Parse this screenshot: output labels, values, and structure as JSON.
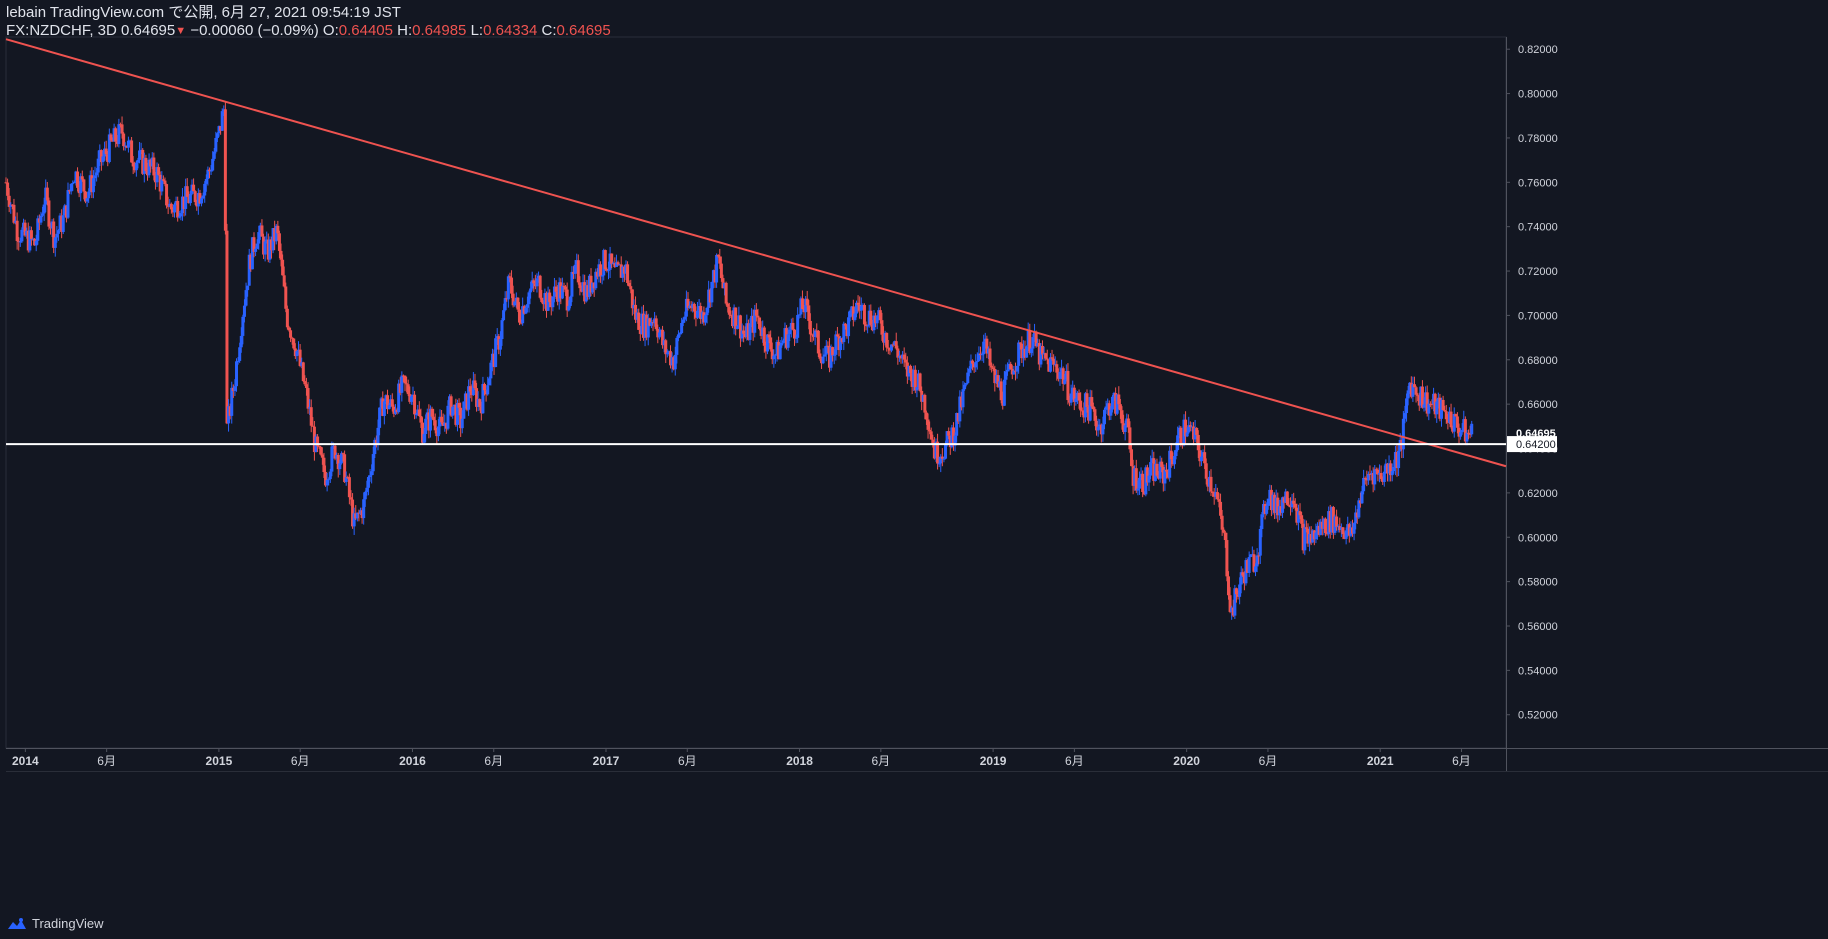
{
  "header": {
    "published_line": "lebain TradingView.com で公開, 6月 27, 2021 09:54:19 JST",
    "symbol": "FX:NZDCHF, 3D",
    "last": "0.64695",
    "change": "−0.00060 (−0.09%)",
    "o_label": "O:",
    "o_value": "0.64405",
    "h_label": "H:",
    "h_value": "0.64985",
    "l_label": "L:",
    "l_value": "0.64334",
    "c_label": "C:",
    "c_value": "0.64695"
  },
  "footer": {
    "brand": "TradingView",
    "logo_icon": "tradingview-logo-icon"
  },
  "colors": {
    "background": "#131722",
    "up": "#2962ff",
    "down": "#ef5350",
    "trendline": "#ef5350",
    "hline": "#ffffff",
    "axis_text": "#d1d4dc"
  },
  "chart_data": {
    "type": "candlestick",
    "symbol": "FX:NZDCHF",
    "timeframe": "3D",
    "ylim": [
      0.505,
      0.8255
    ],
    "xlim": [
      2013.9,
      2021.65
    ],
    "y_ticks": [
      "0.52000",
      "0.54000",
      "0.56000",
      "0.58000",
      "0.60000",
      "0.62000",
      "0.64000",
      "0.66000",
      "0.68000",
      "0.70000",
      "0.72000",
      "0.74000",
      "0.76000",
      "0.78000",
      "0.80000",
      "0.82000"
    ],
    "x_ticks": [
      {
        "t": 2014.0,
        "label": "2014"
      },
      {
        "t": 2014.42,
        "label": "6月"
      },
      {
        "t": 2015.0,
        "label": "2015"
      },
      {
        "t": 2015.42,
        "label": "6月"
      },
      {
        "t": 2016.0,
        "label": "2016"
      },
      {
        "t": 2016.42,
        "label": "6月"
      },
      {
        "t": 2017.0,
        "label": "2017"
      },
      {
        "t": 2017.42,
        "label": "6月"
      },
      {
        "t": 2018.0,
        "label": "2018"
      },
      {
        "t": 2018.42,
        "label": "6月"
      },
      {
        "t": 2019.0,
        "label": "2019"
      },
      {
        "t": 2019.42,
        "label": "6月"
      },
      {
        "t": 2020.0,
        "label": "2020"
      },
      {
        "t": 2020.42,
        "label": "6月"
      },
      {
        "t": 2021.0,
        "label": "2021"
      },
      {
        "t": 2021.42,
        "label": "6月"
      }
    ],
    "price_path": [
      [
        2013.9,
        0.76
      ],
      [
        2013.96,
        0.738
      ],
      [
        2014.05,
        0.732
      ],
      [
        2014.1,
        0.754
      ],
      [
        2014.15,
        0.735
      ],
      [
        2014.2,
        0.744
      ],
      [
        2014.25,
        0.765
      ],
      [
        2014.32,
        0.755
      ],
      [
        2014.38,
        0.768
      ],
      [
        2014.45,
        0.778
      ],
      [
        2014.5,
        0.783
      ],
      [
        2014.55,
        0.772
      ],
      [
        2014.62,
        0.768
      ],
      [
        2014.68,
        0.764
      ],
      [
        2014.75,
        0.748
      ],
      [
        2014.82,
        0.752
      ],
      [
        2014.9,
        0.755
      ],
      [
        2014.95,
        0.765
      ],
      [
        2015.0,
        0.782
      ],
      [
        2015.03,
        0.795
      ],
      [
        2015.04,
        0.648
      ],
      [
        2015.08,
        0.67
      ],
      [
        2015.12,
        0.7
      ],
      [
        2015.16,
        0.725
      ],
      [
        2015.2,
        0.738
      ],
      [
        2015.25,
        0.728
      ],
      [
        2015.3,
        0.738
      ],
      [
        2015.35,
        0.7
      ],
      [
        2015.4,
        0.685
      ],
      [
        2015.45,
        0.665
      ],
      [
        2015.5,
        0.64
      ],
      [
        2015.55,
        0.628
      ],
      [
        2015.6,
        0.64
      ],
      [
        2015.65,
        0.63
      ],
      [
        2015.7,
        0.605
      ],
      [
        2015.75,
        0.615
      ],
      [
        2015.8,
        0.64
      ],
      [
        2015.85,
        0.662
      ],
      [
        2015.9,
        0.658
      ],
      [
        2015.95,
        0.668
      ],
      [
        2016.0,
        0.665
      ],
      [
        2016.05,
        0.648
      ],
      [
        2016.1,
        0.655
      ],
      [
        2016.15,
        0.648
      ],
      [
        2016.2,
        0.66
      ],
      [
        2016.25,
        0.652
      ],
      [
        2016.3,
        0.668
      ],
      [
        2016.35,
        0.66
      ],
      [
        2016.4,
        0.675
      ],
      [
        2016.45,
        0.69
      ],
      [
        2016.5,
        0.715
      ],
      [
        2016.55,
        0.7
      ],
      [
        2016.6,
        0.71
      ],
      [
        2016.65,
        0.715
      ],
      [
        2016.7,
        0.705
      ],
      [
        2016.75,
        0.712
      ],
      [
        2016.8,
        0.708
      ],
      [
        2016.85,
        0.72
      ],
      [
        2016.9,
        0.71
      ],
      [
        2016.95,
        0.72
      ],
      [
        2017.0,
        0.725
      ],
      [
        2017.05,
        0.718
      ],
      [
        2017.1,
        0.722
      ],
      [
        2017.15,
        0.7
      ],
      [
        2017.2,
        0.695
      ],
      [
        2017.25,
        0.7
      ],
      [
        2017.3,
        0.685
      ],
      [
        2017.35,
        0.68
      ],
      [
        2017.4,
        0.7
      ],
      [
        2017.45,
        0.705
      ],
      [
        2017.5,
        0.7
      ],
      [
        2017.55,
        0.715
      ],
      [
        2017.58,
        0.725
      ],
      [
        2017.62,
        0.705
      ],
      [
        2017.68,
        0.698
      ],
      [
        2017.72,
        0.69
      ],
      [
        2017.78,
        0.7
      ],
      [
        2017.82,
        0.69
      ],
      [
        2017.88,
        0.682
      ],
      [
        2017.92,
        0.69
      ],
      [
        2017.98,
        0.695
      ],
      [
        2018.02,
        0.705
      ],
      [
        2018.06,
        0.695
      ],
      [
        2018.1,
        0.685
      ],
      [
        2018.15,
        0.68
      ],
      [
        2018.2,
        0.69
      ],
      [
        2018.25,
        0.695
      ],
      [
        2018.3,
        0.705
      ],
      [
        2018.35,
        0.7
      ],
      [
        2018.4,
        0.698
      ],
      [
        2018.45,
        0.69
      ],
      [
        2018.5,
        0.685
      ],
      [
        2018.55,
        0.675
      ],
      [
        2018.6,
        0.672
      ],
      [
        2018.65,
        0.66
      ],
      [
        2018.7,
        0.638
      ],
      [
        2018.75,
        0.64
      ],
      [
        2018.8,
        0.648
      ],
      [
        2018.85,
        0.665
      ],
      [
        2018.9,
        0.68
      ],
      [
        2018.95,
        0.688
      ],
      [
        2019.0,
        0.672
      ],
      [
        2019.05,
        0.665
      ],
      [
        2019.1,
        0.678
      ],
      [
        2019.15,
        0.685
      ],
      [
        2019.2,
        0.69
      ],
      [
        2019.25,
        0.68
      ],
      [
        2019.3,
        0.678
      ],
      [
        2019.35,
        0.675
      ],
      [
        2019.4,
        0.665
      ],
      [
        2019.45,
        0.66
      ],
      [
        2019.5,
        0.658
      ],
      [
        2019.55,
        0.65
      ],
      [
        2019.6,
        0.66
      ],
      [
        2019.65,
        0.66
      ],
      [
        2019.7,
        0.645
      ],
      [
        2019.72,
        0.628
      ],
      [
        2019.78,
        0.625
      ],
      [
        2019.82,
        0.63
      ],
      [
        2019.88,
        0.628
      ],
      [
        2019.92,
        0.635
      ],
      [
        2019.96,
        0.645
      ],
      [
        2020.0,
        0.65
      ],
      [
        2020.05,
        0.643
      ],
      [
        2020.1,
        0.63
      ],
      [
        2020.15,
        0.62
      ],
      [
        2020.2,
        0.595
      ],
      [
        2020.23,
        0.565
      ],
      [
        2020.26,
        0.575
      ],
      [
        2020.3,
        0.585
      ],
      [
        2020.35,
        0.59
      ],
      [
        2020.38,
        0.6
      ],
      [
        2020.42,
        0.622
      ],
      [
        2020.46,
        0.612
      ],
      [
        2020.5,
        0.618
      ],
      [
        2020.55,
        0.62
      ],
      [
        2020.6,
        0.6
      ],
      [
        2020.65,
        0.6
      ],
      [
        2020.7,
        0.605
      ],
      [
        2020.75,
        0.608
      ],
      [
        2020.8,
        0.605
      ],
      [
        2020.85,
        0.6
      ],
      [
        2020.9,
        0.62
      ],
      [
        2020.95,
        0.63
      ],
      [
        2021.0,
        0.628
      ],
      [
        2021.05,
        0.632
      ],
      [
        2021.1,
        0.638
      ],
      [
        2021.12,
        0.648
      ],
      [
        2021.15,
        0.67
      ],
      [
        2021.2,
        0.665
      ],
      [
        2021.25,
        0.66
      ],
      [
        2021.3,
        0.658
      ],
      [
        2021.35,
        0.655
      ],
      [
        2021.4,
        0.65
      ],
      [
        2021.45,
        0.646
      ],
      [
        2021.48,
        0.647
      ]
    ],
    "trendline": {
      "from": [
        2013.9,
        0.8245
      ],
      "to": [
        2021.65,
        0.632
      ]
    },
    "horizontal_line": {
      "price": 0.642,
      "label": "0.64200"
    },
    "last_price_label": "0.64695",
    "last_price": 0.64695
  }
}
